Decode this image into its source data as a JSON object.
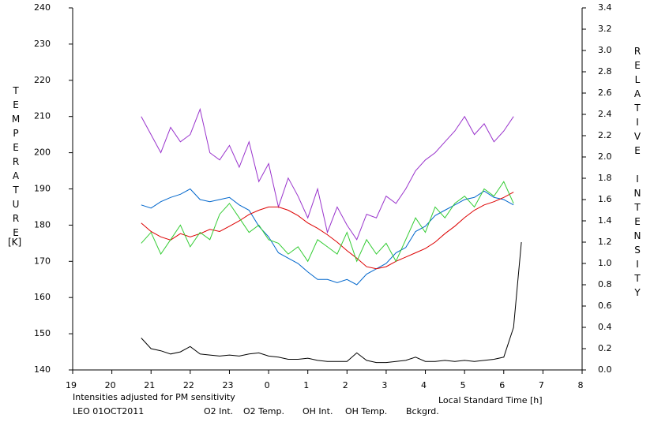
{
  "chart_data": {
    "type": "line",
    "y_label": "TEMPERATURE",
    "y_unit": "[K]",
    "y2_label": "RELATIVE INTENSITY",
    "x_label": "Local Standard Time [h]",
    "note": "Intensities adjusted for PM sensitivity",
    "note_color": "#33cc33",
    "station": "LEO 01OCT2011",
    "xlim": [
      19,
      32
    ],
    "xticks": [
      19,
      20,
      21,
      22,
      23,
      {
        "value": 24,
        "label": "0"
      },
      {
        "value": 25,
        "label": "1"
      },
      {
        "value": 26,
        "label": "2"
      },
      {
        "value": 27,
        "label": "3"
      },
      {
        "value": 28,
        "label": "4"
      },
      {
        "value": 29,
        "label": "5"
      },
      {
        "value": 30,
        "label": "6"
      },
      {
        "value": 31,
        "label": "7"
      },
      {
        "value": 32,
        "label": "8"
      }
    ],
    "ylim": [
      140,
      240
    ],
    "yticks": [
      140,
      150,
      160,
      170,
      180,
      190,
      200,
      210,
      220,
      230,
      240
    ],
    "y2lim": [
      0,
      3.4
    ],
    "y2ticks": [
      {
        "value": 0,
        "label": "0.0"
      },
      0.2,
      0.4,
      0.6,
      0.8,
      {
        "value": 1,
        "label": "1.0"
      },
      1.2,
      1.4,
      1.6,
      1.8,
      {
        "value": 2,
        "label": "2.0"
      },
      2.2,
      2.4,
      2.6,
      2.8,
      {
        "value": 3,
        "label": "3.0"
      },
      3.2,
      3.4
    ],
    "x": [
      20.75,
      21,
      21.25,
      21.5,
      21.75,
      22,
      22.25,
      22.5,
      22.75,
      23,
      23.25,
      23.5,
      23.75,
      24,
      24.25,
      24.5,
      24.75,
      25,
      25.25,
      25.5,
      25.75,
      26,
      26.25,
      26.5,
      26.75,
      27,
      27.25,
      27.5,
      27.75,
      28,
      28.25,
      28.5,
      28.75,
      29,
      29.25,
      29.5,
      29.75,
      30,
      30.25,
      30.45
    ],
    "series": [
      {
        "name": "O2 Int.",
        "color": "#0066cc",
        "axis": "y2",
        "values": [
          1.55,
          1.52,
          1.58,
          1.62,
          1.65,
          1.7,
          1.6,
          1.58,
          1.6,
          1.62,
          1.55,
          1.5,
          1.35,
          1.25,
          1.1,
          1.05,
          1.0,
          0.92,
          0.85,
          0.85,
          0.82,
          0.85,
          0.8,
          0.9,
          0.95,
          1.0,
          1.1,
          1.15,
          1.3,
          1.35,
          1.45,
          1.5,
          1.55,
          1.6,
          1.62,
          1.68,
          1.62,
          1.6,
          1.55,
          null
        ]
      },
      {
        "name": "O2 Temp.",
        "color": "#9933cc",
        "values": [
          210,
          205,
          200,
          207,
          203,
          205,
          212,
          200,
          198,
          202,
          196,
          203,
          192,
          197,
          185,
          193,
          188,
          182,
          190,
          178,
          185,
          180,
          176,
          183,
          182,
          188,
          186,
          190,
          195,
          198,
          200,
          203,
          206,
          210,
          205,
          208,
          203,
          206,
          210,
          null
        ]
      },
      {
        "name": "OH Int.",
        "color": "#dd0000",
        "axis": "y2",
        "values": [
          1.38,
          1.3,
          1.25,
          1.22,
          1.28,
          1.25,
          1.28,
          1.32,
          1.3,
          1.35,
          1.4,
          1.46,
          1.5,
          1.53,
          1.53,
          1.5,
          1.45,
          1.38,
          1.33,
          1.27,
          1.2,
          1.12,
          1.05,
          0.97,
          0.95,
          0.97,
          1.02,
          1.06,
          1.1,
          1.14,
          1.2,
          1.28,
          1.35,
          1.43,
          1.5,
          1.55,
          1.58,
          1.62,
          1.67,
          null
        ]
      },
      {
        "name": "OH Temp.",
        "color": "#33cc33",
        "values": [
          175,
          178,
          172,
          176,
          180,
          174,
          178,
          176,
          183,
          186,
          182,
          178,
          180,
          176,
          175,
          172,
          174,
          170,
          176,
          174,
          172,
          178,
          170,
          176,
          172,
          175,
          170,
          176,
          182,
          178,
          185,
          182,
          186,
          188,
          185,
          190,
          188,
          192,
          186,
          null
        ]
      },
      {
        "name": "Bckgrd.",
        "color": "#000000",
        "axis": "y2",
        "values": [
          0.3,
          0.2,
          0.18,
          0.15,
          0.17,
          0.22,
          0.15,
          0.14,
          0.13,
          0.14,
          0.13,
          0.15,
          0.16,
          0.13,
          0.12,
          0.1,
          0.1,
          0.11,
          0.09,
          0.08,
          0.08,
          0.08,
          0.16,
          0.09,
          0.07,
          0.07,
          0.08,
          0.09,
          0.12,
          0.08,
          0.08,
          0.09,
          0.08,
          0.09,
          0.08,
          0.09,
          0.1,
          0.12,
          0.4,
          1.2
        ]
      }
    ]
  }
}
